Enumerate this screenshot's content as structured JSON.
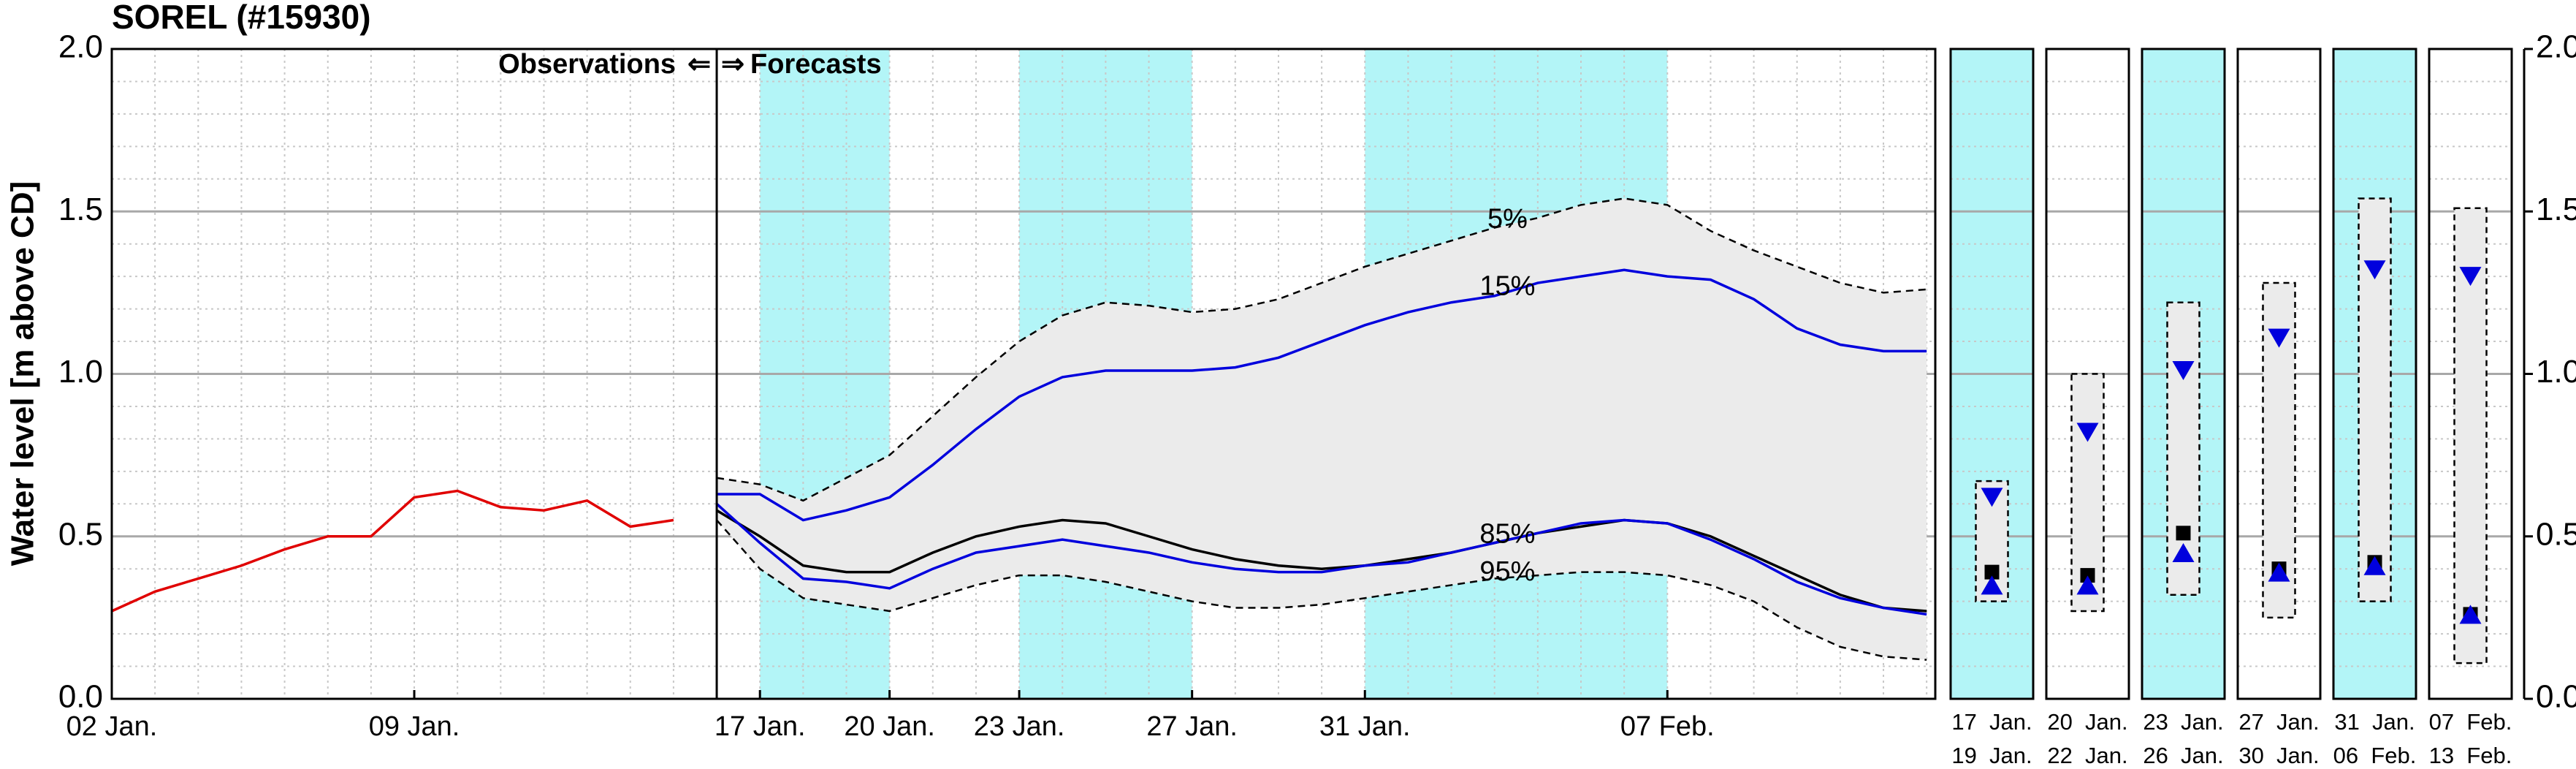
{
  "chart_data": {
    "type": "line",
    "title": "SOREL (#15930)",
    "y_label": "Water level [m above CD]",
    "xlim": [
      2,
      44.2
    ],
    "xticks": [
      {
        "value": 2,
        "label": "02 Jan."
      },
      {
        "value": 9,
        "label": "09 Jan."
      },
      {
        "value": 17,
        "label": "17 Jan."
      },
      {
        "value": 20,
        "label": "20 Jan."
      },
      {
        "value": 23,
        "label": "23 Jan."
      },
      {
        "value": 27,
        "label": "27 Jan."
      },
      {
        "value": 31,
        "label": "31 Jan."
      },
      {
        "value": 38,
        "label": "07 Feb."
      }
    ],
    "ylim": [
      0,
      2
    ],
    "yticks": [
      {
        "value": 0,
        "label": "0.0"
      },
      {
        "value": 0.5,
        "label": "0.5"
      },
      {
        "value": 1,
        "label": "1.0"
      },
      {
        "value": 1.5,
        "label": "1.5"
      },
      {
        "value": 2,
        "label": "2.0"
      }
    ],
    "grid": true,
    "shade_color": "#b3f5f7",
    "band_color": "#ebebeb",
    "shaded_ranges": [
      [
        17,
        20
      ],
      [
        23,
        27
      ],
      [
        31,
        38
      ]
    ],
    "forecast_start": 16,
    "annotations": {
      "observations": "Observations",
      "arrow_left": "⇐",
      "arrow_right": "⇒",
      "forecasts": "Forecasts"
    },
    "series": [
      {
        "color": "#e00000",
        "dash": false,
        "x": [
          2,
          3,
          4,
          5,
          6,
          7,
          8,
          9,
          10,
          11,
          12,
          13,
          14,
          15
        ],
        "values": [
          0.27,
          0.33,
          0.37,
          0.41,
          0.46,
          0.5,
          0.5,
          0.62,
          0.64,
          0.59,
          0.58,
          0.61,
          0.53,
          0.55
        ]
      },
      {
        "name": "5%",
        "color": "#000000",
        "dash": true,
        "x": [
          16,
          17,
          18,
          19,
          20,
          21,
          22,
          23,
          24,
          25,
          26,
          27,
          28,
          29,
          30,
          31,
          32,
          33,
          34,
          35,
          36,
          37,
          38,
          39,
          40,
          41,
          42,
          43,
          44
        ],
        "values": [
          0.68,
          0.66,
          0.61,
          0.68,
          0.75,
          0.87,
          0.99,
          1.1,
          1.18,
          1.22,
          1.21,
          1.19,
          1.2,
          1.23,
          1.28,
          1.33,
          1.37,
          1.41,
          1.45,
          1.48,
          1.52,
          1.54,
          1.52,
          1.44,
          1.38,
          1.33,
          1.28,
          1.25,
          1.26
        ]
      },
      {
        "name": "15%",
        "color": "#0000dd",
        "dash": false,
        "x": [
          16,
          17,
          18,
          19,
          20,
          21,
          22,
          23,
          24,
          25,
          26,
          27,
          28,
          29,
          30,
          31,
          32,
          33,
          34,
          35,
          36,
          37,
          38,
          39,
          40,
          41,
          42,
          43,
          44
        ],
        "values": [
          0.63,
          0.63,
          0.55,
          0.58,
          0.62,
          0.72,
          0.83,
          0.93,
          0.99,
          1.01,
          1.01,
          1.01,
          1.02,
          1.05,
          1.1,
          1.15,
          1.19,
          1.22,
          1.24,
          1.28,
          1.3,
          1.32,
          1.3,
          1.29,
          1.23,
          1.14,
          1.09,
          1.07,
          1.07
        ]
      },
      {
        "color": "#000000",
        "dash": false,
        "x": [
          16,
          17,
          18,
          19,
          20,
          21,
          22,
          23,
          24,
          25,
          26,
          27,
          28,
          29,
          30,
          31,
          32,
          33,
          34,
          35,
          36,
          37,
          38,
          39,
          40,
          41,
          42,
          43,
          44
        ],
        "values": [
          0.58,
          0.5,
          0.41,
          0.39,
          0.39,
          0.45,
          0.5,
          0.53,
          0.55,
          0.54,
          0.5,
          0.46,
          0.43,
          0.41,
          0.4,
          0.41,
          0.43,
          0.45,
          0.48,
          0.51,
          0.53,
          0.55,
          0.54,
          0.5,
          0.44,
          0.38,
          0.32,
          0.28,
          0.27
        ]
      },
      {
        "name": "85%",
        "color": "#0000dd",
        "dash": false,
        "x": [
          16,
          17,
          18,
          19,
          20,
          21,
          22,
          23,
          24,
          25,
          26,
          27,
          28,
          29,
          30,
          31,
          32,
          33,
          34,
          35,
          36,
          37,
          38,
          39,
          40,
          41,
          42,
          43,
          44
        ],
        "values": [
          0.6,
          0.48,
          0.37,
          0.36,
          0.34,
          0.4,
          0.45,
          0.47,
          0.49,
          0.47,
          0.45,
          0.42,
          0.4,
          0.39,
          0.39,
          0.41,
          0.42,
          0.45,
          0.48,
          0.51,
          0.54,
          0.55,
          0.54,
          0.49,
          0.43,
          0.36,
          0.31,
          0.28,
          0.26
        ]
      },
      {
        "name": "95%",
        "color": "#000000",
        "dash": true,
        "x": [
          16,
          17,
          18,
          19,
          20,
          21,
          22,
          23,
          24,
          25,
          26,
          27,
          28,
          29,
          30,
          31,
          32,
          33,
          34,
          35,
          36,
          37,
          38,
          39,
          40,
          41,
          42,
          43,
          44
        ],
        "values": [
          0.55,
          0.4,
          0.31,
          0.29,
          0.27,
          0.31,
          0.35,
          0.38,
          0.38,
          0.36,
          0.33,
          0.3,
          0.28,
          0.28,
          0.29,
          0.31,
          0.33,
          0.35,
          0.37,
          0.38,
          0.39,
          0.39,
          0.38,
          0.35,
          0.3,
          0.22,
          0.16,
          0.13,
          0.12
        ]
      }
    ],
    "panels": [
      {
        "period_start": "17  Jan.",
        "period_end": "19  Jan.",
        "shaded": true,
        "range": [
          0.3,
          0.67
        ],
        "down_triangle": 0.62,
        "square": 0.39,
        "up_triangle": 0.35
      },
      {
        "period_start": "20  Jan.",
        "period_end": "22  Jan.",
        "shaded": false,
        "range": [
          0.27,
          1.0
        ],
        "down_triangle": 0.82,
        "square": 0.38,
        "up_triangle": 0.35
      },
      {
        "period_start": "23  Jan.",
        "period_end": "26  Jan.",
        "shaded": true,
        "range": [
          0.32,
          1.22
        ],
        "down_triangle": 1.01,
        "square": 0.51,
        "up_triangle": 0.45
      },
      {
        "period_start": "27  Jan.",
        "period_end": "30  Jan.",
        "shaded": false,
        "range": [
          0.25,
          1.28
        ],
        "down_triangle": 1.11,
        "square": 0.4,
        "up_triangle": 0.39
      },
      {
        "period_start": "31  Jan.",
        "period_end": "06  Feb.",
        "shaded": true,
        "range": [
          0.3,
          1.54
        ],
        "down_triangle": 1.32,
        "square": 0.42,
        "up_triangle": 0.41
      },
      {
        "period_start": "07  Feb.",
        "period_end": "13  Feb.",
        "shaded": false,
        "range": [
          0.11,
          1.51
        ],
        "down_triangle": 1.3,
        "square": 0.26,
        "up_triangle": 0.26
      }
    ]
  }
}
